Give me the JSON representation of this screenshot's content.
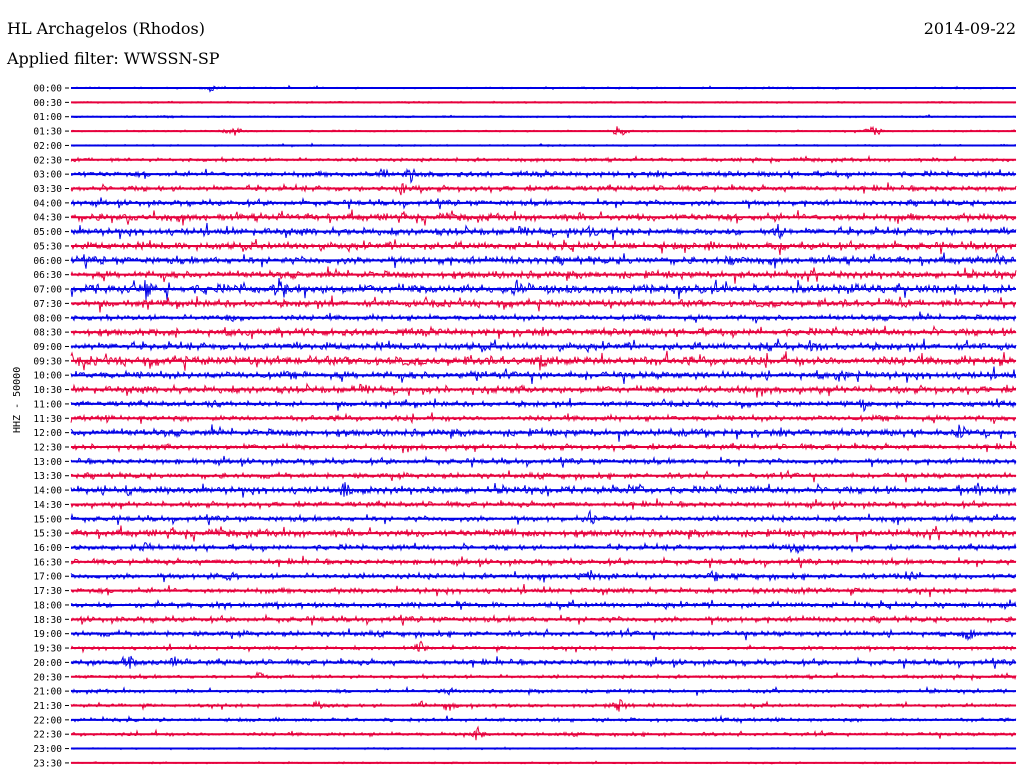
{
  "header": {
    "station": "HL Archagelos (Rhodos)",
    "date": "2014-09-22",
    "filter": "Applied filter: WWSSN-SP"
  },
  "chart_data": {
    "type": "line",
    "title": "HL Archagelos (Rhodos)",
    "ylabel": "HHZ - 50000",
    "channel": "HHZ",
    "scale": 50000,
    "colors": [
      "#0000e6",
      "#e6003c"
    ],
    "rows": [
      "00:00",
      "00:30",
      "01:00",
      "01:30",
      "02:00",
      "02:30",
      "03:00",
      "03:30",
      "04:00",
      "04:30",
      "05:00",
      "05:30",
      "06:00",
      "06:30",
      "07:00",
      "07:30",
      "08:00",
      "08:30",
      "09:00",
      "09:30",
      "10:00",
      "10:30",
      "11:00",
      "11:30",
      "12:00",
      "12:30",
      "13:00",
      "13:30",
      "14:00",
      "14:30",
      "15:00",
      "15:30",
      "16:00",
      "16:30",
      "17:00",
      "17:30",
      "18:00",
      "18:30",
      "19:00",
      "19:30",
      "20:00",
      "20:30",
      "21:00",
      "21:30",
      "22:00",
      "22:30",
      "23:00",
      "23:30"
    ],
    "activity": [
      1,
      1,
      1,
      1,
      1,
      2,
      3,
      3,
      3,
      4,
      4,
      4,
      4,
      4,
      5,
      4,
      3,
      4,
      4,
      5,
      4,
      4,
      3,
      3,
      4,
      3,
      3,
      3,
      4,
      3,
      3,
      4,
      3,
      3,
      3,
      3,
      3,
      3,
      3,
      2,
      3,
      2,
      2,
      2,
      2,
      2,
      1,
      1
    ],
    "events": [
      [
        0,
        0.15,
        6
      ],
      [
        3,
        0.17,
        10
      ],
      [
        3,
        0.58,
        9
      ],
      [
        3,
        0.85,
        10
      ],
      [
        6,
        0.33,
        9
      ],
      [
        6,
        0.36,
        12
      ],
      [
        7,
        0.35,
        8
      ],
      [
        9,
        0.06,
        9
      ],
      [
        10,
        0.55,
        9
      ],
      [
        10,
        0.75,
        12
      ],
      [
        11,
        0.75,
        14
      ],
      [
        12,
        0.7,
        9
      ],
      [
        12,
        0.98,
        8
      ],
      [
        14,
        0.08,
        14
      ],
      [
        14,
        0.22,
        16
      ],
      [
        14,
        0.47,
        9
      ],
      [
        16,
        0.17,
        9
      ],
      [
        17,
        0.09,
        8
      ],
      [
        18,
        0.74,
        9
      ],
      [
        18,
        0.78,
        9
      ],
      [
        19,
        0.5,
        10
      ],
      [
        20,
        0.82,
        9
      ],
      [
        20,
        0.43,
        9
      ],
      [
        22,
        0.15,
        8
      ],
      [
        22,
        0.84,
        9
      ],
      [
        24,
        0.67,
        9
      ],
      [
        24,
        0.94,
        10
      ],
      [
        28,
        0.06,
        9
      ],
      [
        28,
        0.29,
        10
      ],
      [
        28,
        0.6,
        11
      ],
      [
        28,
        0.96,
        10
      ],
      [
        30,
        0.55,
        9
      ],
      [
        31,
        0.46,
        8
      ],
      [
        32,
        0.08,
        8
      ],
      [
        32,
        0.77,
        9
      ],
      [
        34,
        0.17,
        9
      ],
      [
        34,
        0.55,
        10
      ],
      [
        34,
        0.68,
        10
      ],
      [
        34,
        0.89,
        9
      ],
      [
        35,
        0.77,
        10
      ],
      [
        36,
        0.41,
        9
      ],
      [
        36,
        0.92,
        8
      ],
      [
        38,
        0.95,
        12
      ],
      [
        39,
        0.37,
        8
      ],
      [
        40,
        0.06,
        12
      ],
      [
        40,
        0.11,
        9
      ],
      [
        41,
        0.2,
        9
      ],
      [
        42,
        0.4,
        8
      ],
      [
        43,
        0.26,
        11
      ],
      [
        43,
        0.37,
        9
      ],
      [
        43,
        0.4,
        10
      ],
      [
        43,
        0.58,
        10
      ],
      [
        45,
        0.43,
        10
      ]
    ]
  }
}
